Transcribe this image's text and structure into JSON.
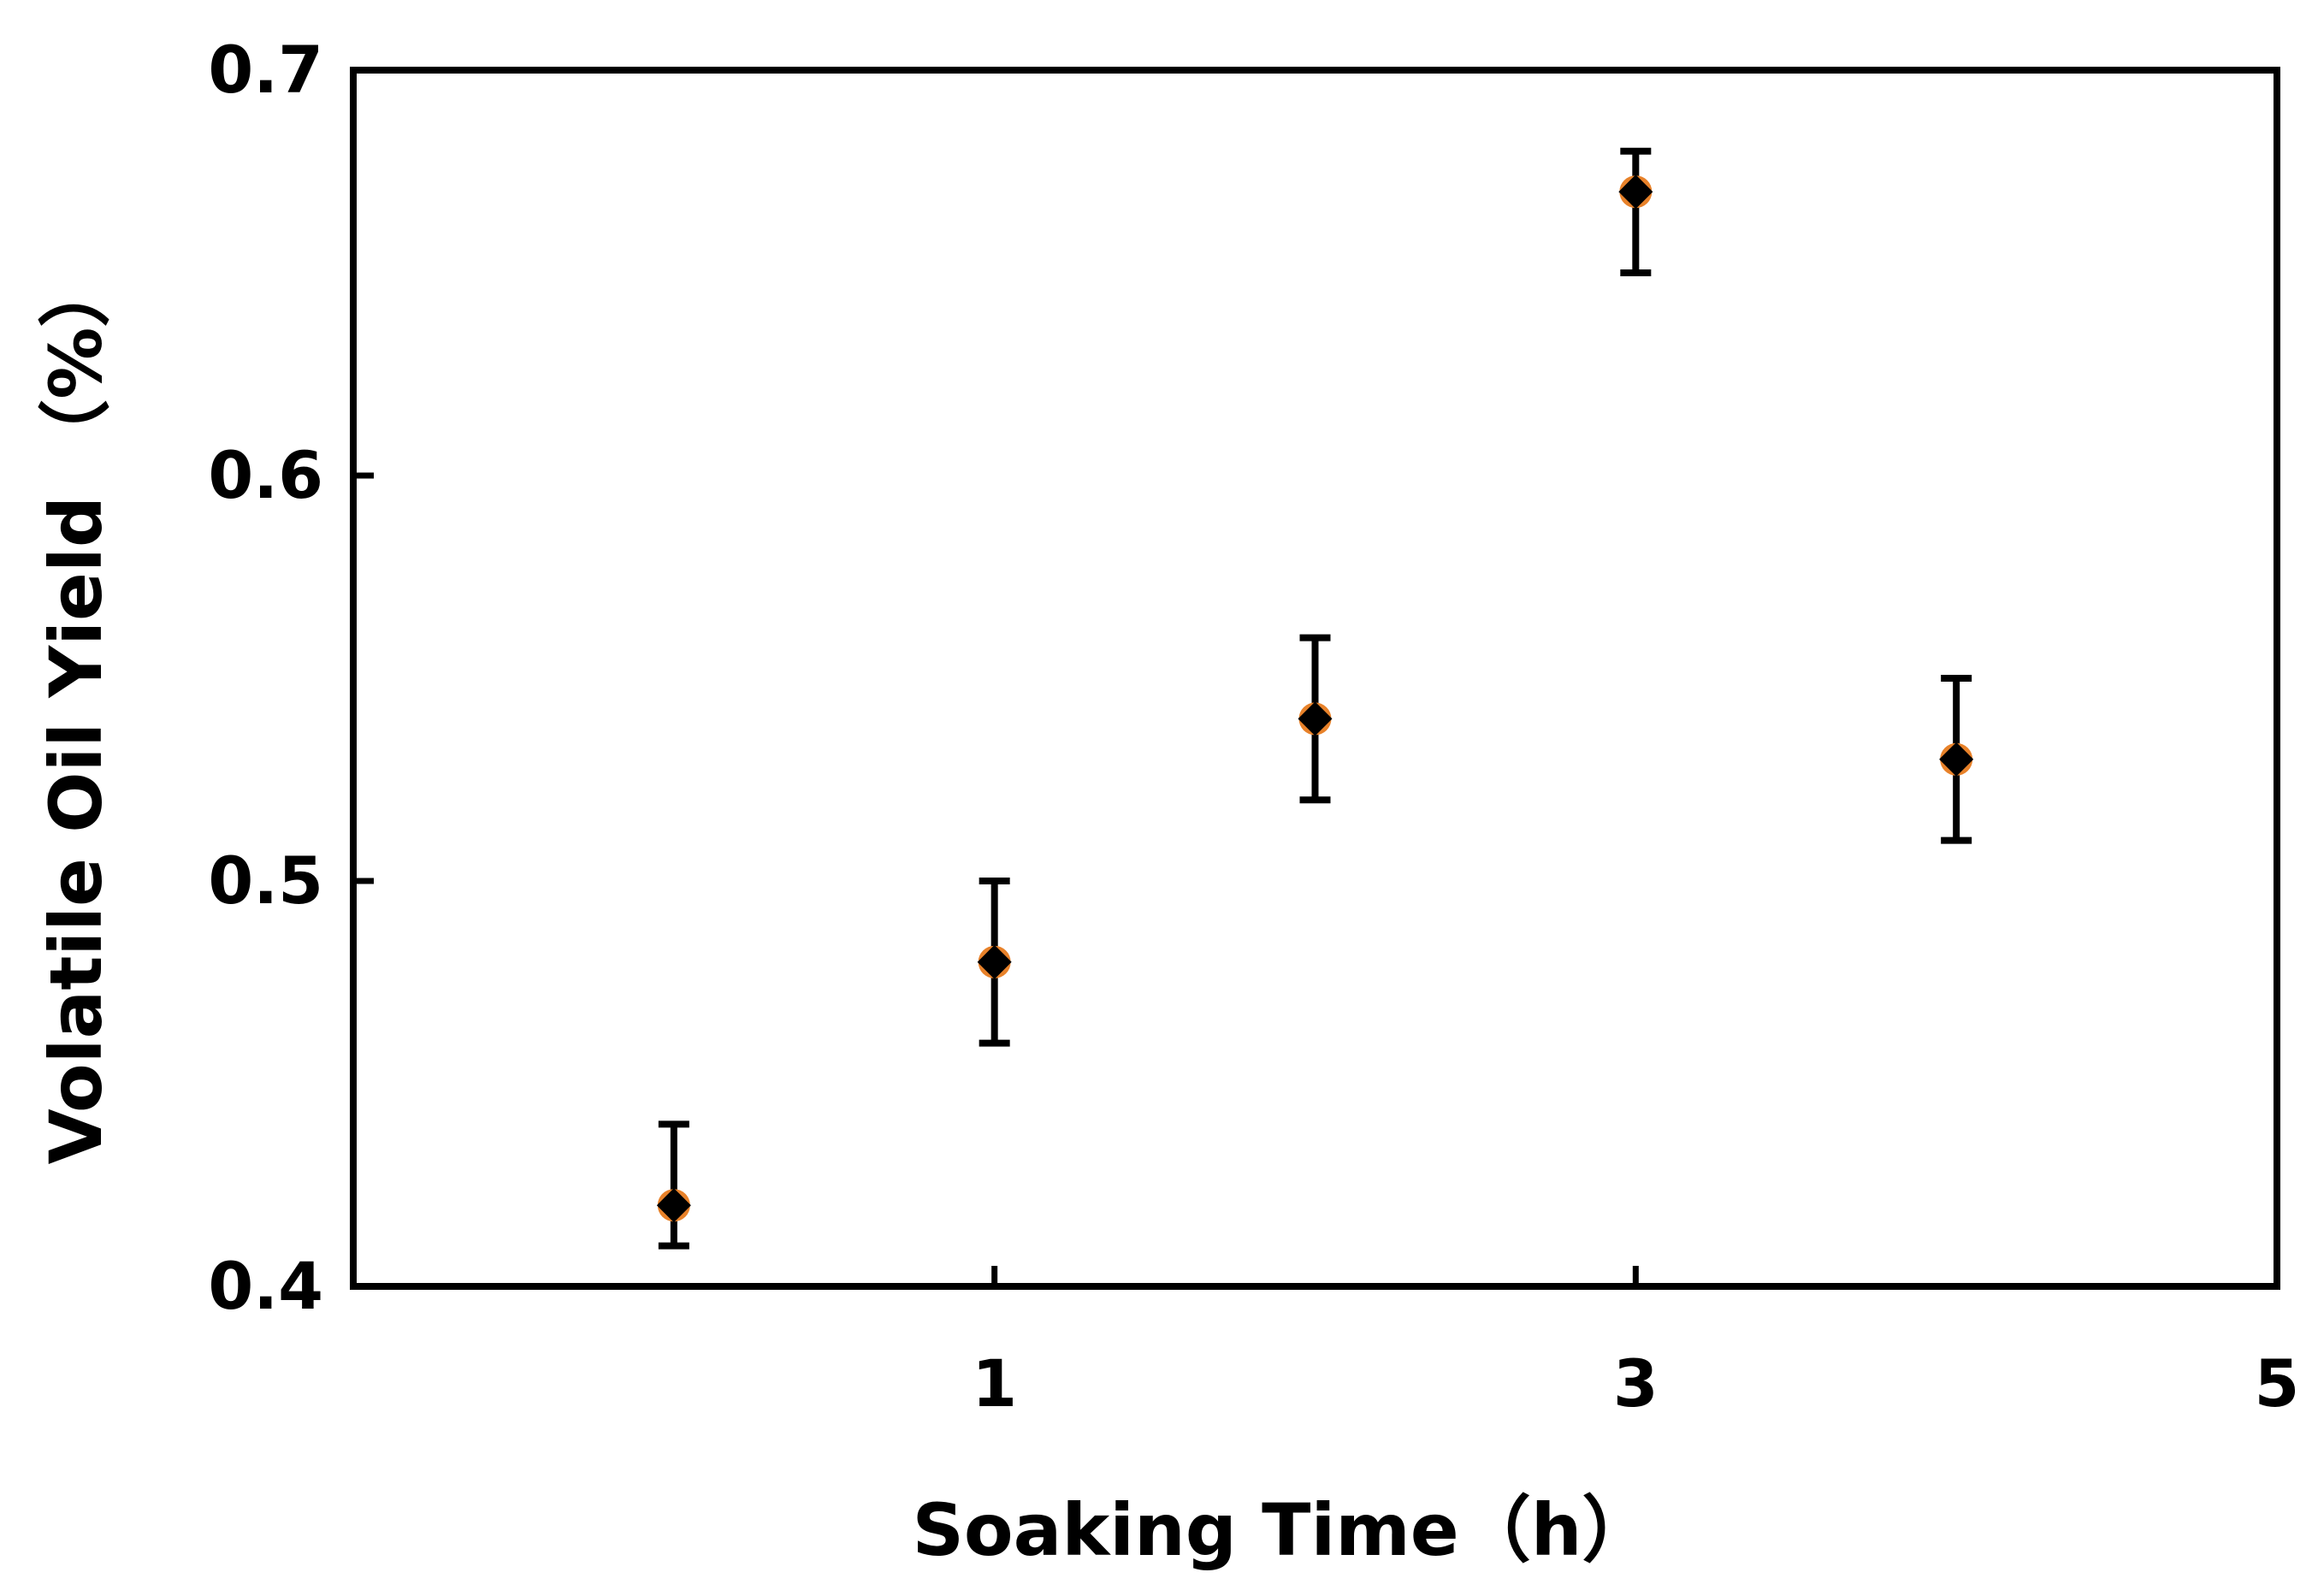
{
  "chart_data": {
    "type": "scatter",
    "title": "",
    "xlabel": "Soaking Time（h）",
    "ylabel": "Volatile Oil Yield （%）",
    "xlim": [
      -1,
      5
    ],
    "ylim": [
      0.4,
      0.7
    ],
    "x_ticks": [
      1,
      3,
      5
    ],
    "y_ticks": [
      0.4,
      0.5,
      0.6,
      0.7
    ],
    "x_tick_labels": [
      "1",
      "3",
      "5"
    ],
    "y_tick_labels": [
      "0.4",
      "0.5",
      "0.6",
      "0.7"
    ],
    "grid": false,
    "series": [
      {
        "marker": "diamond",
        "marker_color": "#000000",
        "marker_edge_color": "#E8822A",
        "points": [
          {
            "x": 0,
            "y": 0.42,
            "err_low": 0.41,
            "err_high": 0.44
          },
          {
            "x": 1,
            "y": 0.48,
            "err_low": 0.46,
            "err_high": 0.5
          },
          {
            "x": 2,
            "y": 0.54,
            "err_low": 0.52,
            "err_high": 0.56
          },
          {
            "x": 3,
            "y": 0.67,
            "err_low": 0.65,
            "err_high": 0.68
          },
          {
            "x": 4,
            "y": 0.53,
            "err_low": 0.51,
            "err_high": 0.55
          }
        ]
      }
    ]
  }
}
